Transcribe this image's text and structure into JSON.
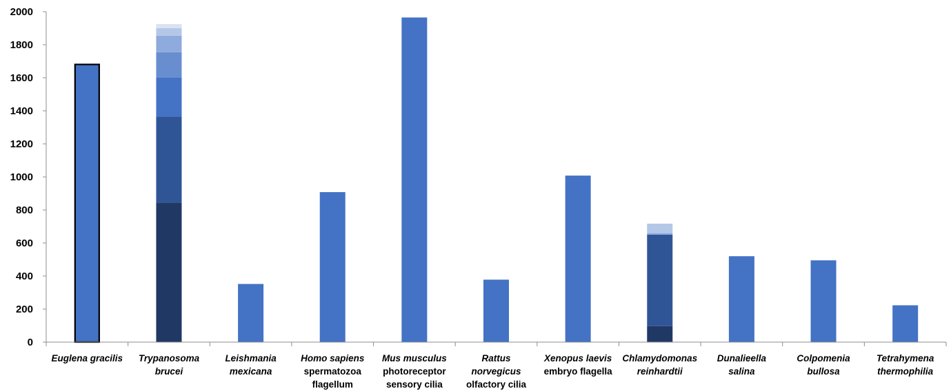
{
  "chart_data": {
    "type": "bar",
    "stacked": true,
    "grid": false,
    "legend": "none",
    "ylim": [
      0,
      2000
    ],
    "yticks": [
      0,
      200,
      400,
      600,
      800,
      1000,
      1200,
      1400,
      1600,
      1800,
      2000
    ],
    "xlabel": "",
    "ylabel": "",
    "categories": [
      {
        "lines": [
          {
            "text": "Euglena gracilis",
            "italic": true
          }
        ]
      },
      {
        "lines": [
          {
            "text": "Trypanosoma",
            "italic": true
          },
          {
            "text": "brucei",
            "italic": true
          }
        ]
      },
      {
        "lines": [
          {
            "text": "Leishmania",
            "italic": true
          },
          {
            "text": "mexicana",
            "italic": true
          }
        ]
      },
      {
        "lines": [
          {
            "text": "Homo sapiens",
            "italic": true
          },
          {
            "text": "spermatozoa",
            "italic": false
          },
          {
            "text": "flagellum",
            "italic": false
          }
        ]
      },
      {
        "lines": [
          {
            "text": "Mus musculus",
            "italic": true
          },
          {
            "text": "photoreceptor",
            "italic": false
          },
          {
            "text": "sensory cilia",
            "italic": false
          }
        ]
      },
      {
        "lines": [
          {
            "text": "Rattus",
            "italic": true
          },
          {
            "text": "norvegicus",
            "italic": true
          },
          {
            "text": "olfactory cilia",
            "italic": false
          }
        ]
      },
      {
        "lines": [
          {
            "text": "Xenopus laevis",
            "italic": true
          },
          {
            "text": "embryo flagella",
            "italic": false
          }
        ]
      },
      {
        "lines": [
          {
            "text": "Chlamydomonas",
            "italic": true
          },
          {
            "text": "reinhardtii",
            "italic": true
          }
        ]
      },
      {
        "lines": [
          {
            "text": "Dunalieella",
            "italic": true
          },
          {
            "text": "salina",
            "italic": true
          }
        ]
      },
      {
        "lines": [
          {
            "text": "Colpomenia",
            "italic": true
          },
          {
            "text": "bullosa",
            "italic": true
          }
        ]
      },
      {
        "lines": [
          {
            "text": "Tetrahymena",
            "italic": true
          },
          {
            "text": "thermophilia",
            "italic": true
          }
        ]
      }
    ],
    "bars": [
      {
        "segments": [
          {
            "value": 1685,
            "color": "#4472c4"
          }
        ],
        "outlined": true
      },
      {
        "segments": [
          {
            "value": 845,
            "color": "#203864"
          },
          {
            "value": 520,
            "color": "#2f5597"
          },
          {
            "value": 235,
            "color": "#4472c4"
          },
          {
            "value": 155,
            "color": "#698ed0"
          },
          {
            "value": 100,
            "color": "#8faadc"
          },
          {
            "value": 45,
            "color": "#b4c7e7"
          },
          {
            "value": 25,
            "color": "#dae3f3"
          }
        ]
      },
      {
        "segments": [
          {
            "value": 352,
            "color": "#4472c4"
          }
        ]
      },
      {
        "segments": [
          {
            "value": 908,
            "color": "#4472c4"
          }
        ]
      },
      {
        "segments": [
          {
            "value": 1965,
            "color": "#4472c4"
          }
        ]
      },
      {
        "segments": [
          {
            "value": 378,
            "color": "#4472c4"
          }
        ]
      },
      {
        "segments": [
          {
            "value": 1008,
            "color": "#4472c4"
          }
        ]
      },
      {
        "segments": [
          {
            "value": 97,
            "color": "#203864"
          },
          {
            "value": 553,
            "color": "#2f5597"
          },
          {
            "value": 10,
            "color": "#8faadc"
          },
          {
            "value": 57,
            "color": "#b4c7e7"
          }
        ]
      },
      {
        "segments": [
          {
            "value": 520,
            "color": "#4472c4"
          }
        ]
      },
      {
        "segments": [
          {
            "value": 495,
            "color": "#4472c4"
          }
        ]
      },
      {
        "segments": [
          {
            "value": 223,
            "color": "#4472c4"
          }
        ]
      }
    ]
  }
}
